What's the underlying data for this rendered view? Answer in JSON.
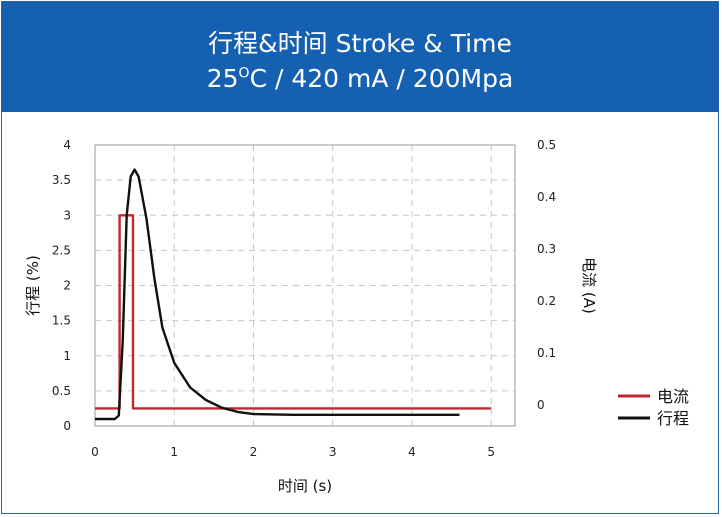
{
  "header": {
    "title": "行程&时间 Stroke & Time",
    "subtitle_pre": "25",
    "subtitle_sup": "O",
    "subtitle_post": "C / 420 mA / 200Mpa"
  },
  "colors": {
    "banner": "#1560b0",
    "current": "#c1272d",
    "stroke": "#111111",
    "grid": "#c8c8c8",
    "frame": "#2a62ad"
  },
  "chart_data": {
    "type": "line",
    "xlabel": "时间 (s)",
    "ylabel_left": "行程 (%)",
    "ylabel_right": "电流 (A)",
    "xlim": [
      0,
      5.3
    ],
    "ylim_left": [
      0,
      4
    ],
    "ylim_right": [
      -0.04,
      0.5
    ],
    "x_ticks": [
      "0",
      "1",
      "2",
      "3",
      "4",
      "5"
    ],
    "y_left_ticks": [
      "0",
      "0.5",
      "1",
      "1.5",
      "2",
      "2.5",
      "3",
      "3.5",
      "4"
    ],
    "y_right_ticks": [
      "0",
      "0.1",
      "0.2",
      "0.3",
      "0.4",
      "0.5"
    ],
    "grid": "dashed",
    "legend_position": "right",
    "series": [
      {
        "name": "电流",
        "axis": "left",
        "points": [
          [
            0,
            0.25
          ],
          [
            0.31,
            0.25
          ],
          [
            0.31,
            3.0
          ],
          [
            0.48,
            3.0
          ],
          [
            0.48,
            0.25
          ],
          [
            5.0,
            0.25
          ]
        ]
      },
      {
        "name": "行程",
        "axis": "left",
        "points": [
          [
            0,
            0.1
          ],
          [
            0.25,
            0.1
          ],
          [
            0.3,
            0.15
          ],
          [
            0.35,
            1.2
          ],
          [
            0.4,
            3.0
          ],
          [
            0.45,
            3.55
          ],
          [
            0.5,
            3.65
          ],
          [
            0.55,
            3.55
          ],
          [
            0.65,
            2.95
          ],
          [
            0.75,
            2.1
          ],
          [
            0.85,
            1.4
          ],
          [
            1.0,
            0.9
          ],
          [
            1.2,
            0.55
          ],
          [
            1.4,
            0.37
          ],
          [
            1.6,
            0.26
          ],
          [
            1.8,
            0.2
          ],
          [
            2.0,
            0.17
          ],
          [
            2.5,
            0.16
          ],
          [
            3.5,
            0.16
          ],
          [
            4.6,
            0.16
          ]
        ]
      }
    ]
  }
}
